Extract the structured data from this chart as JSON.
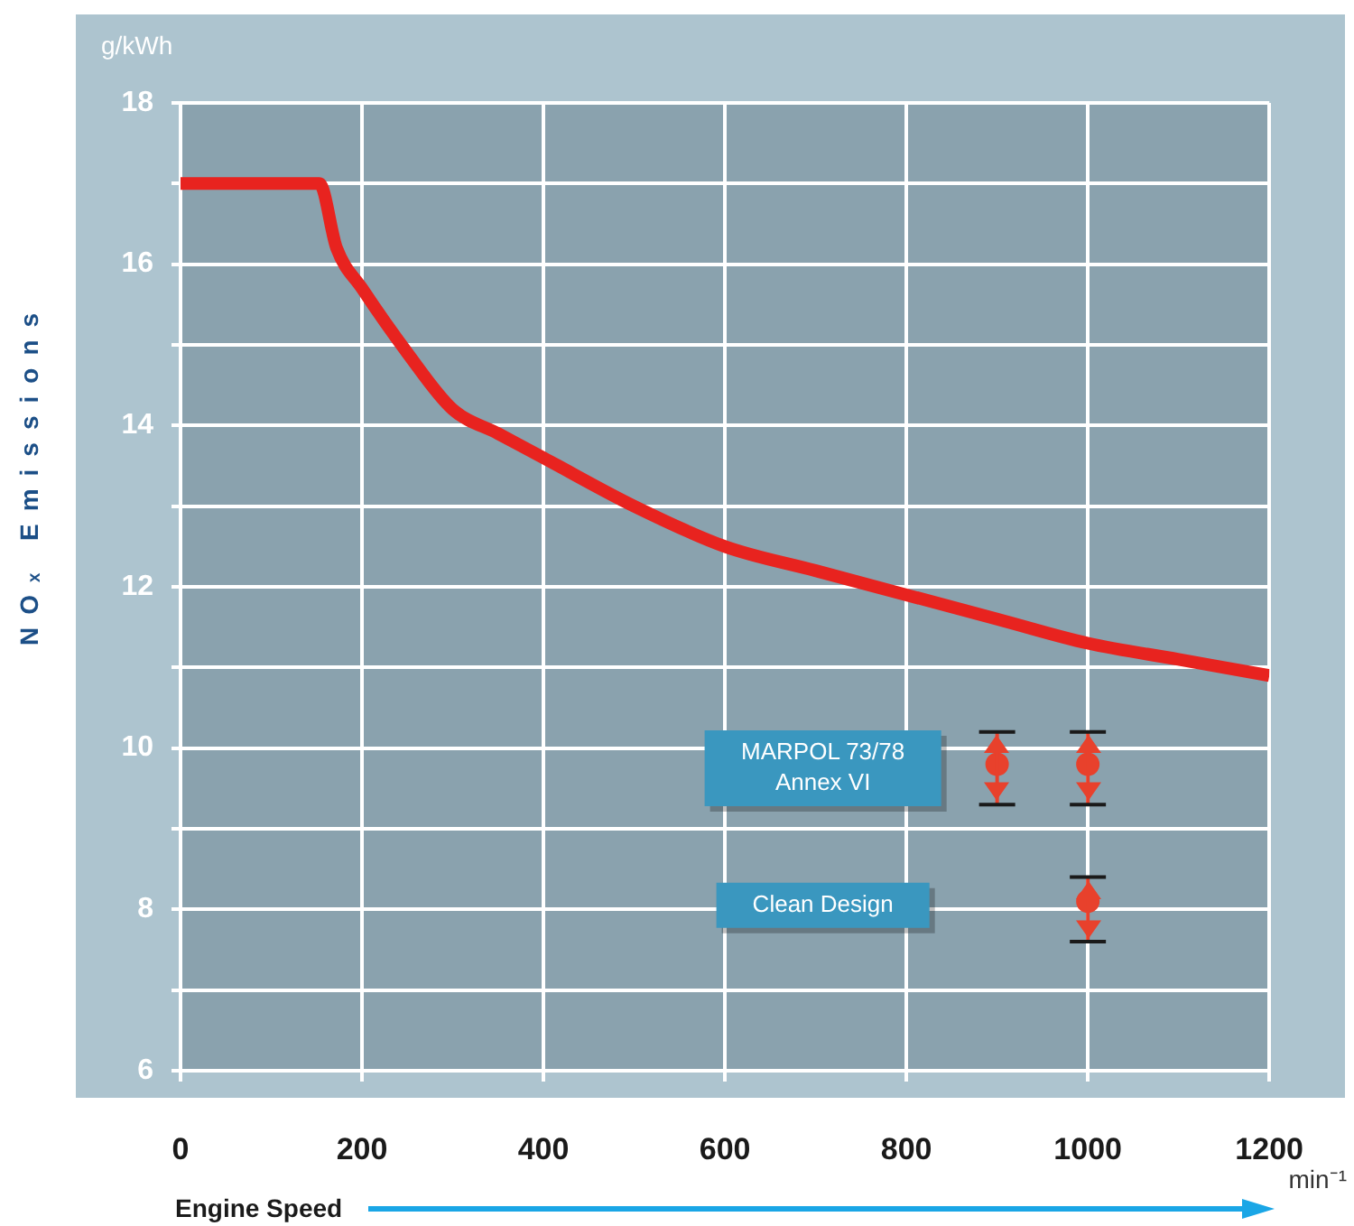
{
  "chart_data": {
    "type": "line",
    "ylabel": "NOₓ Emissions",
    "xlabel": "Engine Speed",
    "annotations": [
      "g/kWh",
      "min⁻¹",
      "MARPOL 73/78\nAnnex VI",
      "Clean Design"
    ],
    "series": [
      {
        "color": "#e8231f",
        "x": [
          0,
          153,
          172,
          200,
          250,
          300,
          350,
          400,
          500,
          600,
          700,
          800,
          900,
          1000,
          1100,
          1200
        ],
        "values": [
          17,
          17,
          16.2,
          15.7,
          14.9,
          14.2,
          13.9,
          13.6,
          13.0,
          12.5,
          12.2,
          11.9,
          11.6,
          11.3,
          11.1,
          10.9
        ]
      },
      {
        "type": "scatter",
        "marker": "circle",
        "color": "#e8412c",
        "x": [
          900,
          1000
        ],
        "values": [
          9.8,
          9.8
        ],
        "errors": [
          [
            9.3,
            10.2
          ],
          [
            9.3,
            10.2
          ]
        ]
      },
      {
        "type": "scatter",
        "marker": "circle",
        "color": "#e8412c",
        "x": [
          1000
        ],
        "values": [
          8.1
        ],
        "errors": [
          [
            7.6,
            8.4
          ]
        ]
      }
    ],
    "xlim": [
      0,
      1200
    ],
    "xticks": [
      0,
      200,
      400,
      600,
      800,
      1000,
      1200
    ],
    "ylim": [
      6,
      18
    ],
    "yticks": [
      6,
      {
        "value": 7,
        "label": null
      },
      8,
      {
        "value": 9,
        "label": null
      },
      10,
      {
        "value": 11,
        "label": null
      },
      12,
      {
        "value": 13,
        "label": null
      },
      14,
      {
        "value": 15,
        "label": null
      },
      16,
      {
        "value": 17,
        "label": null
      },
      18
    ],
    "grid": true,
    "legend": false,
    "line_style": "solid"
  }
}
